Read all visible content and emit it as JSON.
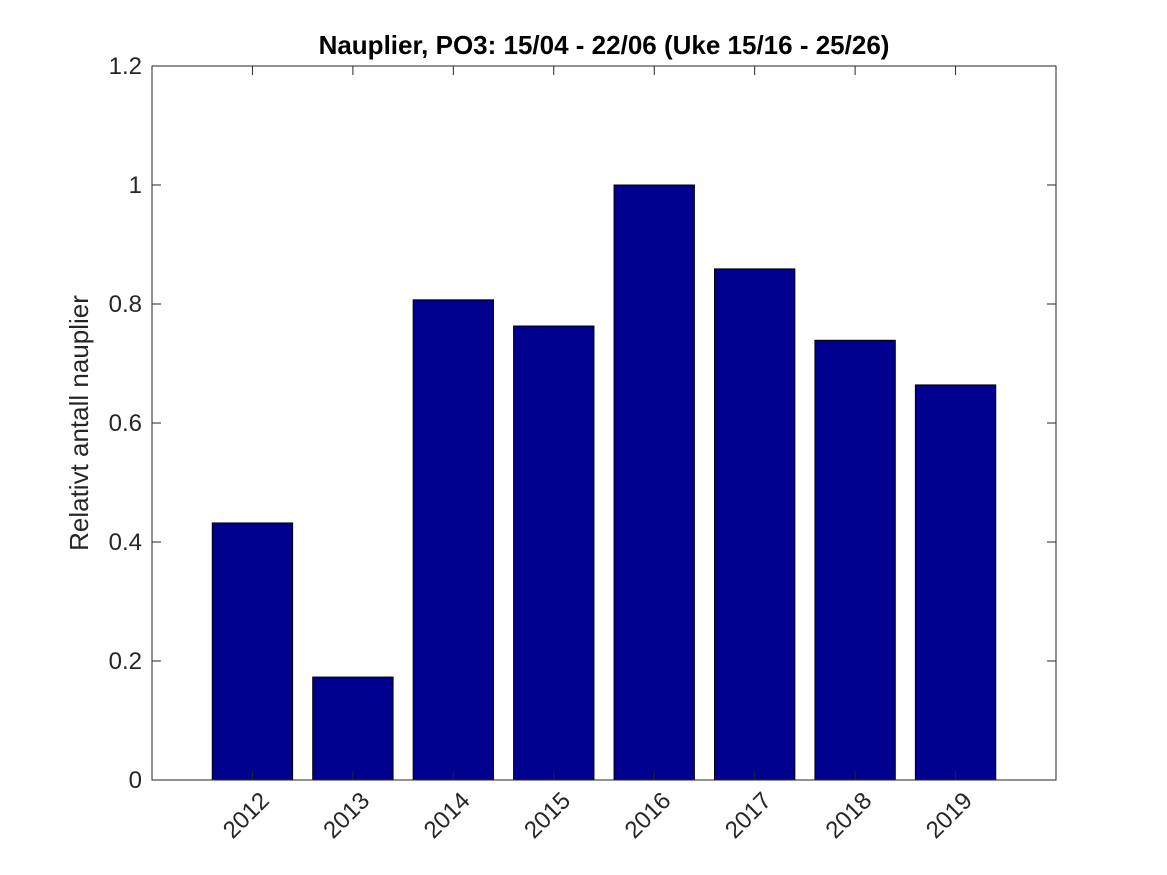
{
  "chart_data": {
    "type": "bar",
    "title": "Nauplier, PO3: 15/04 - 22/06 (Uke 15/16 - 25/26)",
    "ylabel": "Relativt antall nauplier",
    "categories": [
      "2012",
      "2013",
      "2014",
      "2015",
      "2016",
      "2017",
      "2018",
      "2019"
    ],
    "values": [
      0.432,
      0.173,
      0.807,
      0.763,
      1.0,
      0.859,
      0.739,
      0.664
    ],
    "color": "#00008f",
    "ylim": [
      0,
      1.2
    ],
    "yticks": [
      0,
      0.2,
      0.4,
      0.6,
      0.8,
      1,
      1.2
    ],
    "grid": false
  }
}
